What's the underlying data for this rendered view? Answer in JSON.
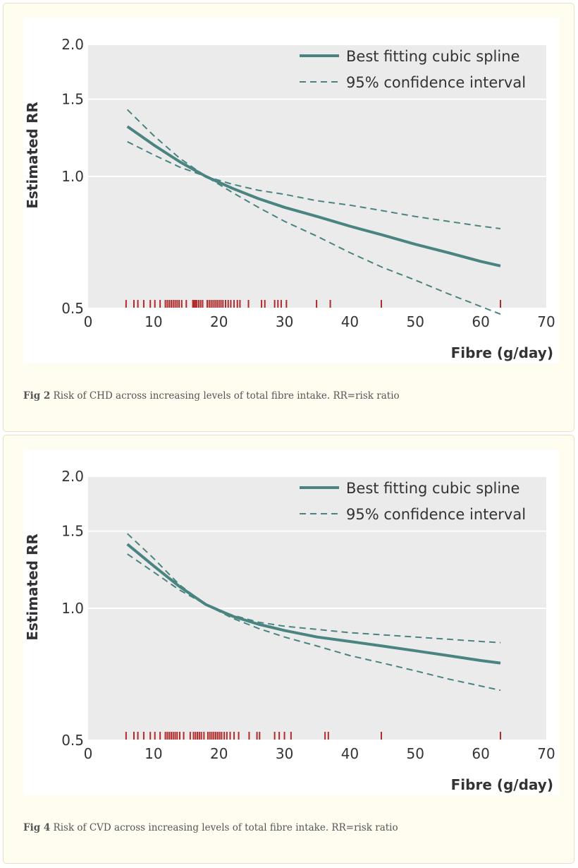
{
  "figures": [
    {
      "caption_label": "Fig 2",
      "caption_text": " Risk of CHD across increasing levels of total fibre intake. RR=risk ratio"
    },
    {
      "caption_label": "Fig 4",
      "caption_text": " Risk of CVD across increasing levels of total fibre intake. RR=risk ratio"
    }
  ],
  "colors": {
    "line": "#4a8480",
    "rug": "#b22a2a",
    "plot_bg": "#ebebeb",
    "grid": "#ffffff"
  },
  "chart_data": [
    {
      "type": "line",
      "xlabel": "Fibre (g/day)",
      "ylabel": "Estimated RR",
      "xlim": [
        0,
        70
      ],
      "ylim": [
        0.5,
        2.0
      ],
      "y_scale": "log",
      "x_ticks": [
        0,
        10,
        20,
        30,
        40,
        50,
        60,
        70
      ],
      "x_tick_labels": [
        "0",
        "10",
        "20",
        "30",
        "40",
        "50",
        "60",
        "70"
      ],
      "y_ticks": [
        0.5,
        1.0,
        1.5,
        2.0
      ],
      "y_tick_labels": [
        "0.5",
        "1.0",
        "1.5",
        "2.0"
      ],
      "grid": true,
      "legend_position": "top-right",
      "series": [
        {
          "name": "Best fitting cubic spline",
          "style": "solid",
          "x": [
            6,
            10,
            14,
            18,
            22,
            26,
            30,
            35,
            40,
            45,
            50,
            55,
            60,
            63
          ],
          "y": [
            1.3,
            1.18,
            1.08,
            1.0,
            0.94,
            0.89,
            0.85,
            0.81,
            0.77,
            0.735,
            0.7,
            0.67,
            0.64,
            0.625
          ]
        },
        {
          "name": "95% confidence interval",
          "style": "dashed",
          "x": [
            6,
            10,
            14,
            18,
            22,
            26,
            30,
            35,
            40,
            45,
            50,
            55,
            60,
            63
          ],
          "y": [
            1.42,
            1.24,
            1.1,
            1.0,
            0.92,
            0.85,
            0.79,
            0.73,
            0.67,
            0.62,
            0.58,
            0.54,
            0.505,
            0.485
          ]
        },
        {
          "name": "",
          "style": "dashed",
          "x": [
            6,
            10,
            14,
            18,
            22,
            26,
            30,
            35,
            40,
            45,
            50,
            55,
            60,
            63
          ],
          "y": [
            1.2,
            1.12,
            1.05,
            1.0,
            0.96,
            0.93,
            0.91,
            0.88,
            0.86,
            0.835,
            0.81,
            0.79,
            0.77,
            0.76
          ]
        }
      ],
      "rug_x": [
        5.8,
        7,
        7.6,
        8.5,
        9.5,
        10.2,
        11,
        11.8,
        12.1,
        12.4,
        12.7,
        13,
        13.3,
        13.6,
        13.9,
        14.3,
        15,
        16,
        16.2,
        16.4,
        16.6,
        16.9,
        17.2,
        17.5,
        18.2,
        18.5,
        18.8,
        19.1,
        19.4,
        19.7,
        20,
        20.3,
        20.6,
        21,
        21.4,
        21.8,
        22.3,
        22.8,
        23.2,
        24.5,
        26.5,
        27,
        28.5,
        29,
        29.5,
        30.3,
        34.9,
        37,
        44.8,
        63
      ]
    },
    {
      "type": "line",
      "xlabel": "Fibre (g/day)",
      "ylabel": "Estimated RR",
      "xlim": [
        0,
        70
      ],
      "ylim": [
        0.5,
        2.0
      ],
      "y_scale": "log",
      "x_ticks": [
        0,
        10,
        20,
        30,
        40,
        50,
        60,
        70
      ],
      "x_tick_labels": [
        "0",
        "10",
        "20",
        "30",
        "40",
        "50",
        "60",
        "70"
      ],
      "y_ticks": [
        0.5,
        1.0,
        1.5,
        2.0
      ],
      "y_tick_labels": [
        "0.5",
        "1.0",
        "1.5",
        "2.0"
      ],
      "grid": true,
      "legend_position": "top-right",
      "series": [
        {
          "name": "Best fitting cubic spline",
          "style": "solid",
          "x": [
            6,
            10,
            14,
            18,
            22,
            26,
            30,
            35,
            40,
            45,
            50,
            55,
            60,
            63
          ],
          "y": [
            1.4,
            1.25,
            1.12,
            1.02,
            0.96,
            0.92,
            0.89,
            0.86,
            0.84,
            0.82,
            0.8,
            0.78,
            0.76,
            0.75
          ]
        },
        {
          "name": "95% confidence interval",
          "style": "dashed",
          "x": [
            6,
            10,
            14,
            18,
            22,
            26,
            30,
            35,
            40,
            45,
            50,
            55,
            60,
            63
          ],
          "y": [
            1.48,
            1.3,
            1.13,
            1.02,
            0.95,
            0.9,
            0.86,
            0.82,
            0.78,
            0.75,
            0.72,
            0.69,
            0.665,
            0.65
          ]
        },
        {
          "name": "",
          "style": "dashed",
          "x": [
            6,
            10,
            14,
            18,
            22,
            26,
            30,
            35,
            40,
            45,
            50,
            55,
            60,
            63
          ],
          "y": [
            1.33,
            1.21,
            1.1,
            1.02,
            0.965,
            0.93,
            0.91,
            0.895,
            0.88,
            0.87,
            0.86,
            0.85,
            0.84,
            0.835
          ]
        }
      ],
      "rug_x": [
        5.8,
        7,
        7.6,
        8.5,
        9.5,
        10.2,
        11,
        11.8,
        12.1,
        12.4,
        12.7,
        13,
        13.3,
        13.6,
        14,
        14.6,
        15.6,
        16.1,
        16.4,
        16.7,
        17,
        17.3,
        17.7,
        18.3,
        18.6,
        18.9,
        19.2,
        19.5,
        19.8,
        20.1,
        20.4,
        20.8,
        21.2,
        21.7,
        22.3,
        23,
        24.6,
        25.8,
        26.2,
        28.5,
        29.2,
        30,
        31,
        36.2,
        36.7,
        44.8,
        63
      ]
    }
  ]
}
